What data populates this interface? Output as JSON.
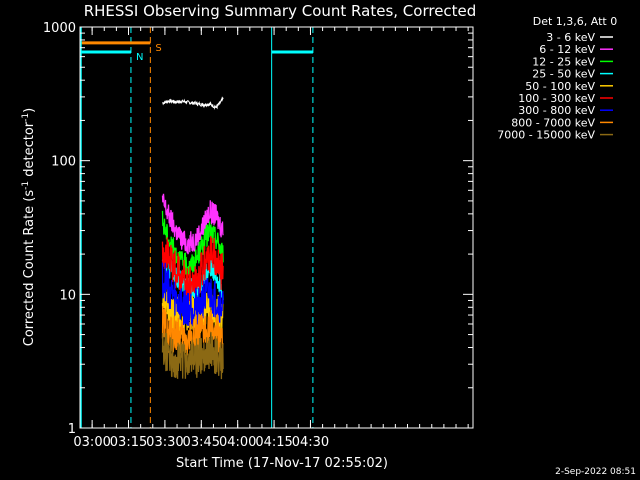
{
  "chart_data": {
    "type": "line",
    "title": "RHESSI Observing Summary Count Rates, Corrected",
    "xlabel": "Start Time (17-Nov-17 02:55:02)",
    "ylabel_main": "Corrected Count Rate (s",
    "ylabel_sup1": "-1",
    "ylabel_mid": " detector",
    "ylabel_sup2": "-1",
    "ylabel_end": ")",
    "y_log": true,
    "ylim": [
      1,
      1000
    ],
    "xlim_minutes": [
      55,
      217
    ],
    "x_ticks": [
      {
        "label": "03:00",
        "min": 60
      },
      {
        "label": "03:15",
        "min": 75
      },
      {
        "label": "03:30",
        "min": 90
      },
      {
        "label": "03:45",
        "min": 105
      },
      {
        "label": "04:00",
        "min": 120
      },
      {
        "label": "04:15",
        "min": 135
      },
      {
        "label": "04:30",
        "min": 150
      }
    ],
    "y_ticks": [
      {
        "label": "1",
        "value": 1
      },
      {
        "label": "10",
        "value": 10
      },
      {
        "label": "100",
        "value": 100
      },
      {
        "label": "1000",
        "value": 1000
      }
    ],
    "legend_header": "Det 1,3,6, Att 0",
    "legend_placement": "top-right, outside plot",
    "series": [
      {
        "name": "3 - 6 keV",
        "color": "#ffffff",
        "t_start": 89,
        "t_end": 114,
        "values": [
          270,
          280,
          275,
          278,
          272,
          268,
          262,
          265,
          250,
          290
        ]
      },
      {
        "name": "6 - 12 keV",
        "color": "#ff33ff",
        "t_start": 89,
        "t_end": 114,
        "values": [
          50,
          38,
          30,
          25,
          24,
          26,
          32,
          42,
          38,
          30
        ]
      },
      {
        "name": "12 - 25 keV",
        "color": "#00ff00",
        "t_start": 89,
        "t_end": 114,
        "values": [
          35,
          25,
          20,
          17,
          16,
          18,
          24,
          30,
          26,
          20
        ]
      },
      {
        "name": "25 - 50 keV",
        "color": "#00ffff",
        "t_start": 89,
        "t_end": 114,
        "values": [
          20,
          16,
          13,
          12,
          11,
          11,
          13,
          16,
          14,
          11
        ]
      },
      {
        "name": "50 - 100 keV",
        "color": "#ffcc00",
        "t_start": 89,
        "t_end": 114,
        "values": [
          9,
          8,
          7,
          7,
          7,
          7,
          7,
          8,
          7,
          7
        ]
      },
      {
        "name": "100 - 300 keV",
        "color": "#ff0000",
        "t_start": 89,
        "t_end": 114,
        "values": [
          22,
          18,
          15,
          13,
          12,
          13,
          16,
          20,
          18,
          14
        ]
      },
      {
        "name": "300 - 800 keV",
        "color": "#0000ff",
        "t_start": 89,
        "t_end": 114,
        "values": [
          13,
          11,
          9,
          8,
          8,
          8,
          9,
          10,
          9,
          8
        ]
      },
      {
        "name": "800 - 7000 keV",
        "color": "#ff8800",
        "t_start": 89,
        "t_end": 114,
        "values": [
          6,
          5,
          5,
          4.5,
          4.5,
          5,
          5,
          5.5,
          5,
          4.5
        ]
      },
      {
        "name": "7000 - 15000 keV",
        "color": "#8b6914",
        "t_start": 89,
        "t_end": 114,
        "values": [
          4,
          3.5,
          3.3,
          3.2,
          3.2,
          3.3,
          3.5,
          3.8,
          3.5,
          3.2
        ]
      }
    ],
    "markers": [
      {
        "label": "N",
        "color": "#00ffff",
        "t_start": 55,
        "t_end": 76,
        "level": 650
      },
      {
        "label": "",
        "color": "#00ffff",
        "t_start": 134,
        "t_end": 151,
        "level": 650
      },
      {
        "label": "S",
        "color": "#ff8800",
        "t_start": 55,
        "t_end": 84,
        "level": 760
      }
    ],
    "timestamp": "2-Sep-2022 08:51"
  }
}
